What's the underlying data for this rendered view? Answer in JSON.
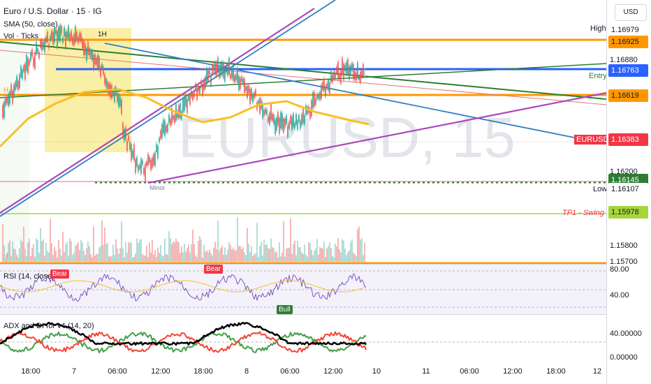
{
  "symbol_title": "Euro / U.S. Dollar · 15 · IG",
  "indicators": {
    "sma": "SMA (50, close)",
    "vol": "Vol · Ticks",
    "rsi": "RSI (14, close)",
    "adx": "ADX and DI for v4 (14, 20)"
  },
  "watermark": "EURUSD, 15",
  "currency_button": "USD",
  "price_labels": {
    "high_name": "High",
    "high": "1.16979",
    "level_upper": "1.16925",
    "entry_name": "Entry",
    "entry": "1.16763",
    "level_mid": "1.16619",
    "symbol_name": "EURUSD",
    "last": "1.16383",
    "tick_1": "1.16880",
    "tick_2": "1.16200",
    "level_dotted": "1.16145",
    "low_name": "Low",
    "low": "1.16107",
    "tp_name": "TP1 - Swing",
    "tp": "1.15978",
    "tick_3": "1.15800",
    "tick_4": "1.15700"
  },
  "rsi_axis": [
    "80.00",
    "40.00"
  ],
  "adx_axis": [
    "40.00000",
    "0.00000"
  ],
  "chart_labels": {
    "h1": "1H",
    "h_left": "H",
    "h_bottom": "H",
    "minor": "Minor"
  },
  "badges": {
    "bear1": "Bear",
    "bear2": "Bear",
    "bull": "Bull"
  },
  "x_axis": [
    "18:00",
    "7",
    "06:00",
    "12:00",
    "18:00",
    "8",
    "06:00",
    "12:00",
    "10",
    "11",
    "06:00",
    "12:00",
    "18:00",
    "12"
  ],
  "colors": {
    "orange": "#ff9800",
    "blue": "#2962ff",
    "green": "#2e7d32",
    "purple": "#ab47bc",
    "red": "#f23645",
    "lime": "#a5d63a",
    "sma": "#f9bf26"
  }
}
